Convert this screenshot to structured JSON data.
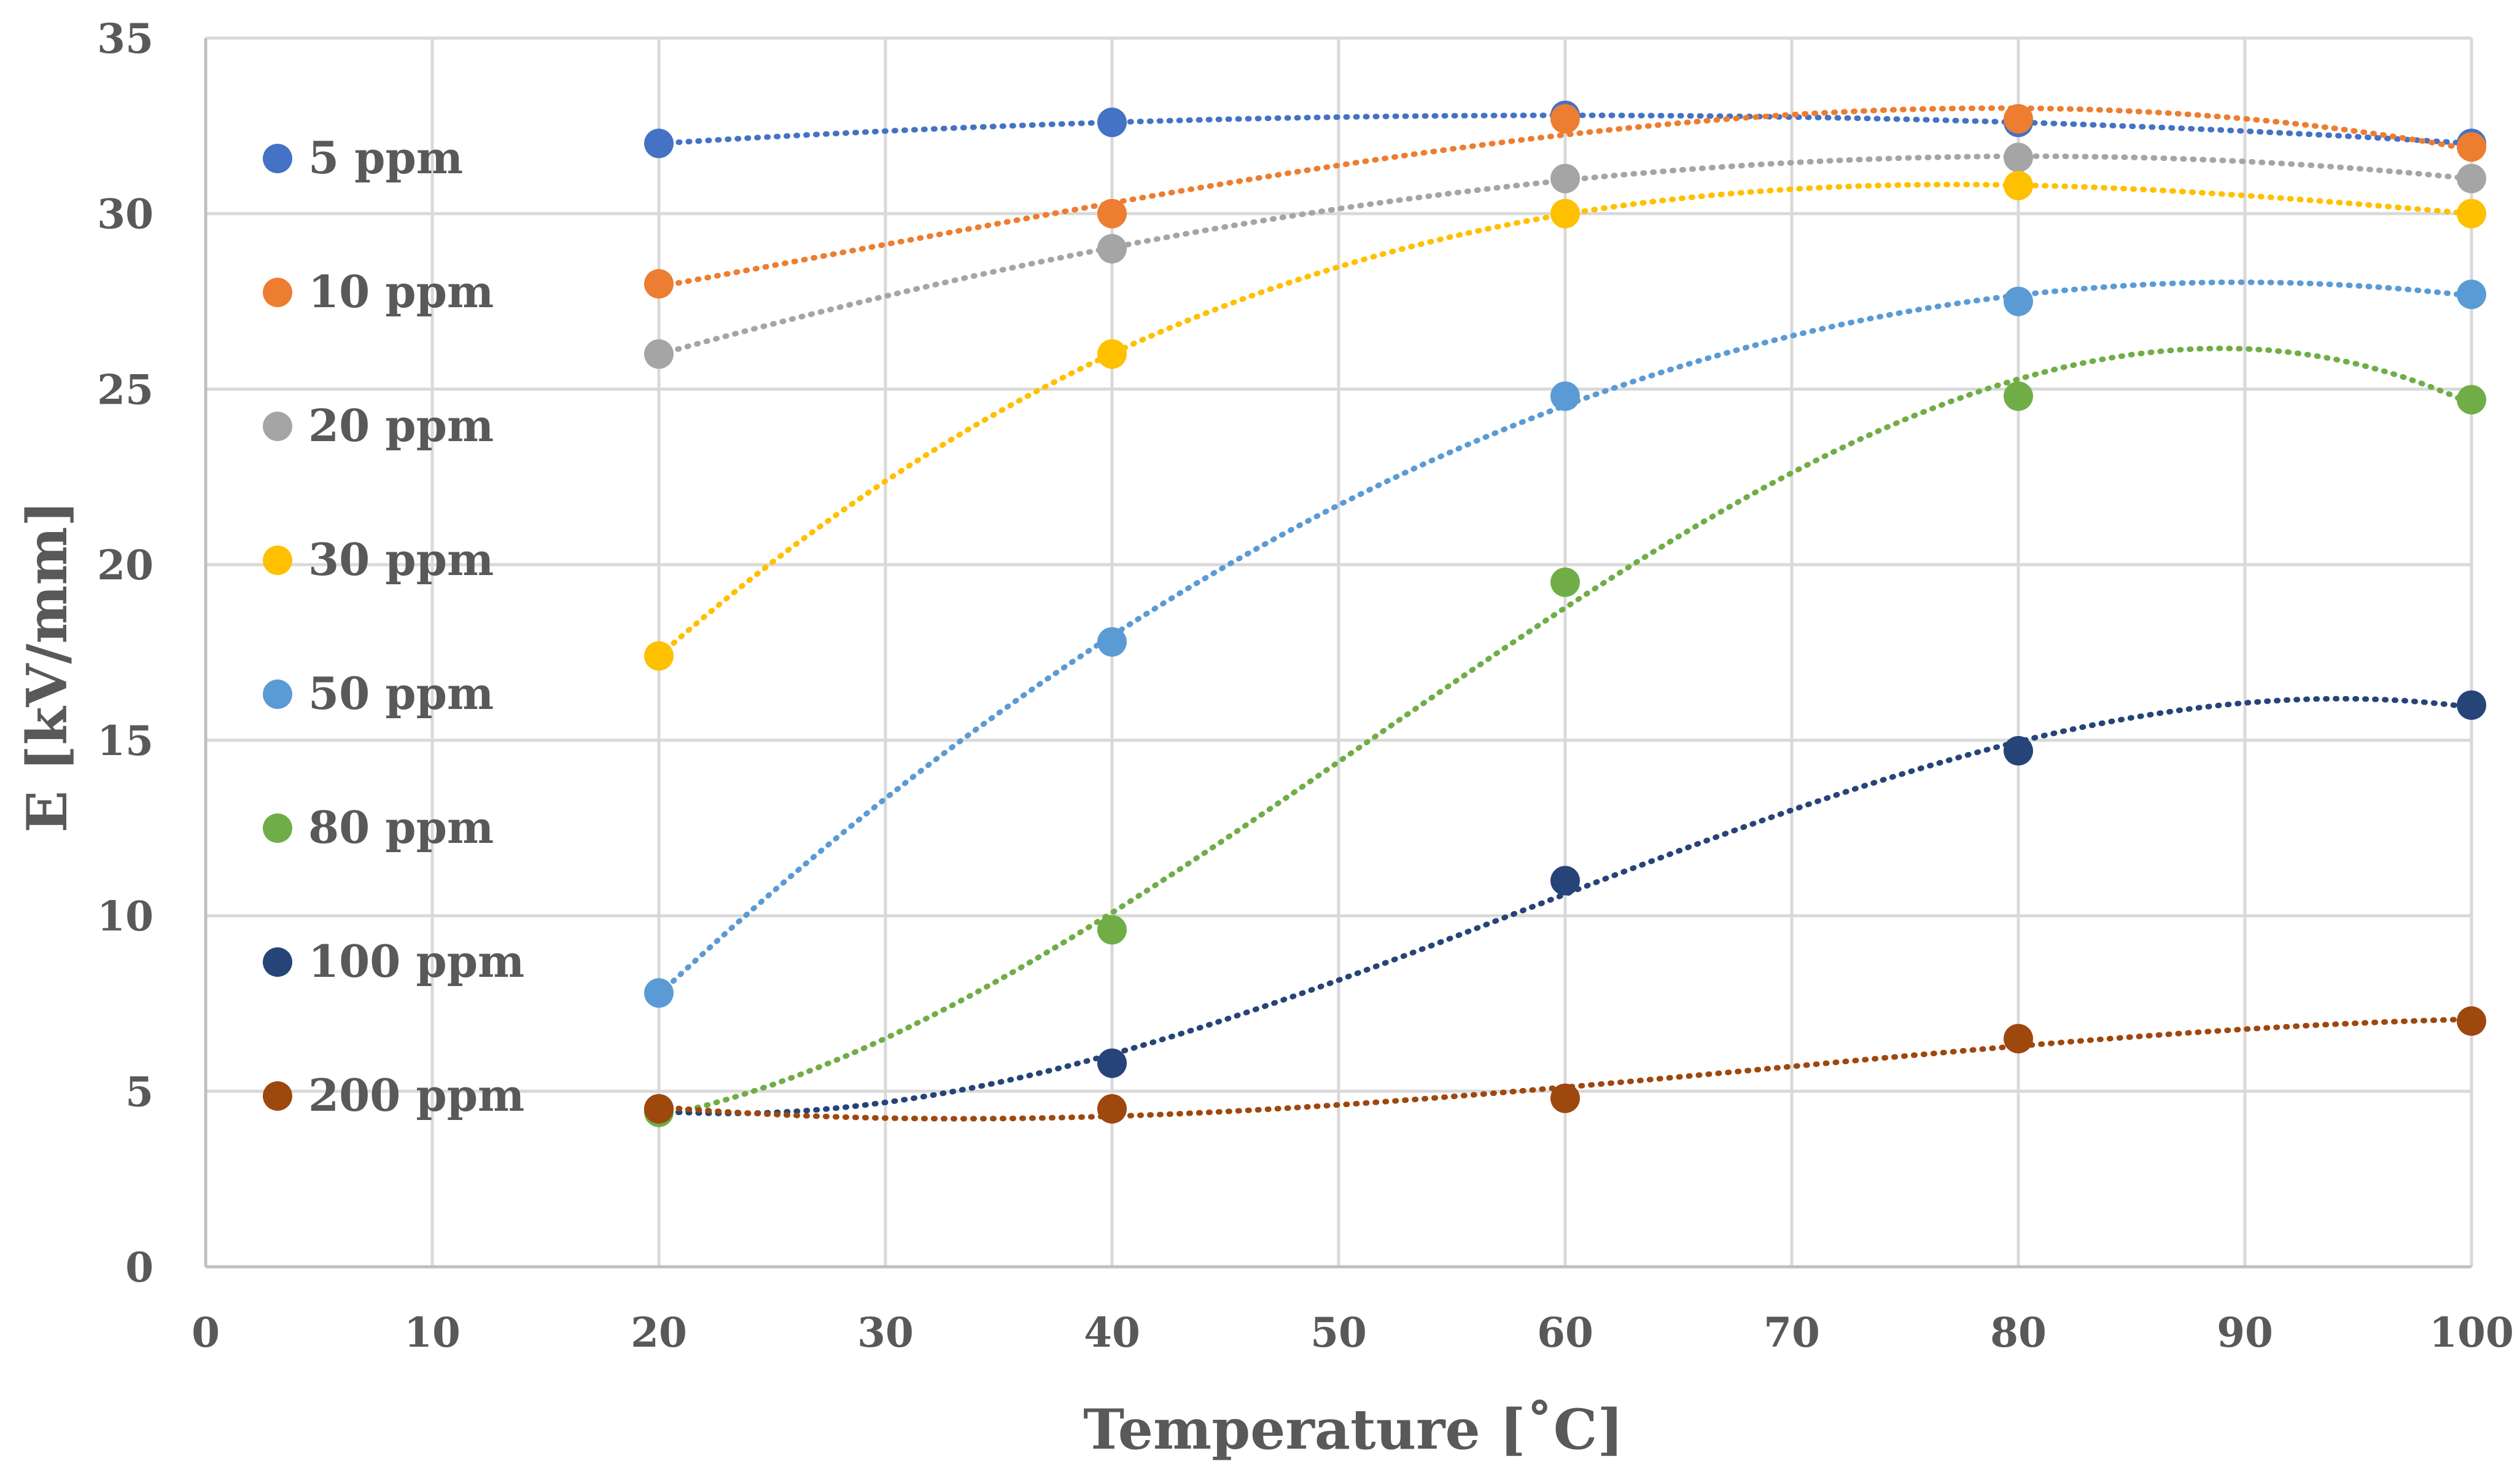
{
  "chart_data": {
    "type": "scatter",
    "title": "",
    "xlabel": "Temperature [˚C]",
    "ylabel": "E [kV/mm]",
    "xlim": [
      0,
      100
    ],
    "ylim": [
      0,
      35
    ],
    "x_ticks": [
      0,
      10,
      20,
      30,
      40,
      50,
      60,
      70,
      80,
      90,
      100
    ],
    "y_ticks": [
      0,
      5,
      10,
      15,
      20,
      25,
      30,
      35
    ],
    "grid": true,
    "legend_position": "left",
    "trendline": "dotted polynomial",
    "x": [
      20,
      40,
      60,
      80,
      100
    ],
    "series": [
      {
        "name": "5 ppm",
        "color": "#4472c4",
        "values": [
          32.0,
          32.6,
          32.8,
          32.6,
          32.0
        ]
      },
      {
        "name": "10 ppm",
        "color": "#ed7d31",
        "values": [
          28.0,
          30.0,
          32.7,
          32.7,
          31.9
        ]
      },
      {
        "name": "20 ppm",
        "color": "#a5a5a5",
        "values": [
          26.0,
          29.0,
          31.0,
          31.6,
          31.0
        ]
      },
      {
        "name": "30 ppm",
        "color": "#ffc000",
        "values": [
          17.4,
          26.0,
          30.0,
          30.8,
          30.0
        ]
      },
      {
        "name": "50 ppm",
        "color": "#5b9bd5",
        "values": [
          7.8,
          17.8,
          24.8,
          27.5,
          27.7
        ]
      },
      {
        "name": "80 ppm",
        "color": "#70ad47",
        "values": [
          4.4,
          9.6,
          19.5,
          24.8,
          24.7
        ]
      },
      {
        "name": "100 ppm",
        "color": "#264478",
        "values": [
          4.5,
          5.8,
          11.0,
          14.7,
          16.0
        ]
      },
      {
        "name": "200 ppm",
        "color": "#9e480e",
        "values": [
          4.5,
          4.5,
          4.8,
          6.5,
          7.0
        ]
      }
    ]
  }
}
